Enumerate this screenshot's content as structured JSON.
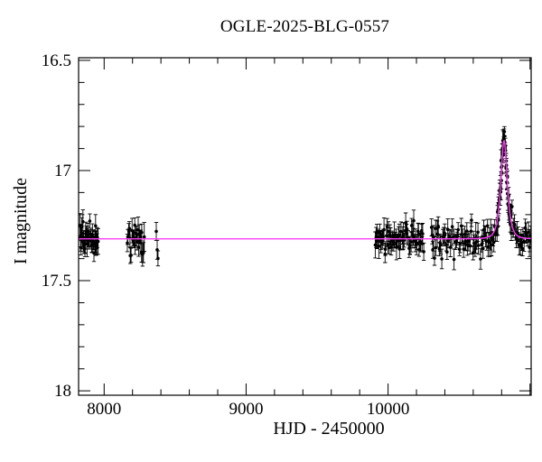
{
  "figure": {
    "background": "#ffffff",
    "axis_color": "#000000",
    "text_color": "#000000"
  },
  "chart_data": {
    "type": "scatter",
    "title": "OGLE-2025-BLG-0557",
    "xlabel": "HJD - 2450000",
    "ylabel": "I magnitude",
    "x_range": [
      7820,
      11008
    ],
    "y_range_mag": [
      16.488,
      18.02
    ],
    "y_axis_inverted": true,
    "grid": false,
    "legend": null,
    "x_labeled_ticks": [
      {
        "t": 8000,
        "label": "8000"
      },
      {
        "t": 9000,
        "label": "9000"
      },
      {
        "t": 10000,
        "label": "10000"
      }
    ],
    "x_major_step": 1000,
    "x_minor_step": 200,
    "y_labeled_ticks": [
      {
        "m": 16.5,
        "label": "16.5"
      },
      {
        "m": 17.0,
        "label": "17"
      },
      {
        "m": 17.5,
        "label": "17.5"
      },
      {
        "m": 18.0,
        "label": "18"
      }
    ],
    "y_major_step": 0.5,
    "y_minor_step": 0.1,
    "baseline_mag": 17.31,
    "peak_mag": 16.87,
    "peak_time": 10817,
    "model": {
      "kind": "paczynski-microlensing",
      "t0": 10817,
      "tE": 30,
      "u0": 0.82,
      "I0": 17.31,
      "color": "#fa3cf4"
    },
    "data_seasons": [
      {
        "hjd_start": 7828,
        "hjd_end": 7958,
        "n_points": 44
      },
      {
        "hjd_start": 8160,
        "hjd_end": 8283,
        "n_points": 26
      },
      {
        "hjd_start": 8362,
        "hjd_end": 8380,
        "n_points": 3
      },
      {
        "hjd_start": 9906,
        "hjd_end": 10254,
        "n_points": 66
      },
      {
        "hjd_start": 10300,
        "hjd_end": 10640,
        "n_points": 58
      },
      {
        "hjd_start": 10650,
        "hjd_end": 11008,
        "n_points": 62
      },
      {
        "hjd_start": 10770,
        "hjd_end": 10868,
        "n_points": 32
      }
    ],
    "photometry": {
      "point_color": "#000000",
      "scatter_sigma_mag": 0.036,
      "typical_error_mag": 0.035,
      "seed": 20250557
    }
  }
}
